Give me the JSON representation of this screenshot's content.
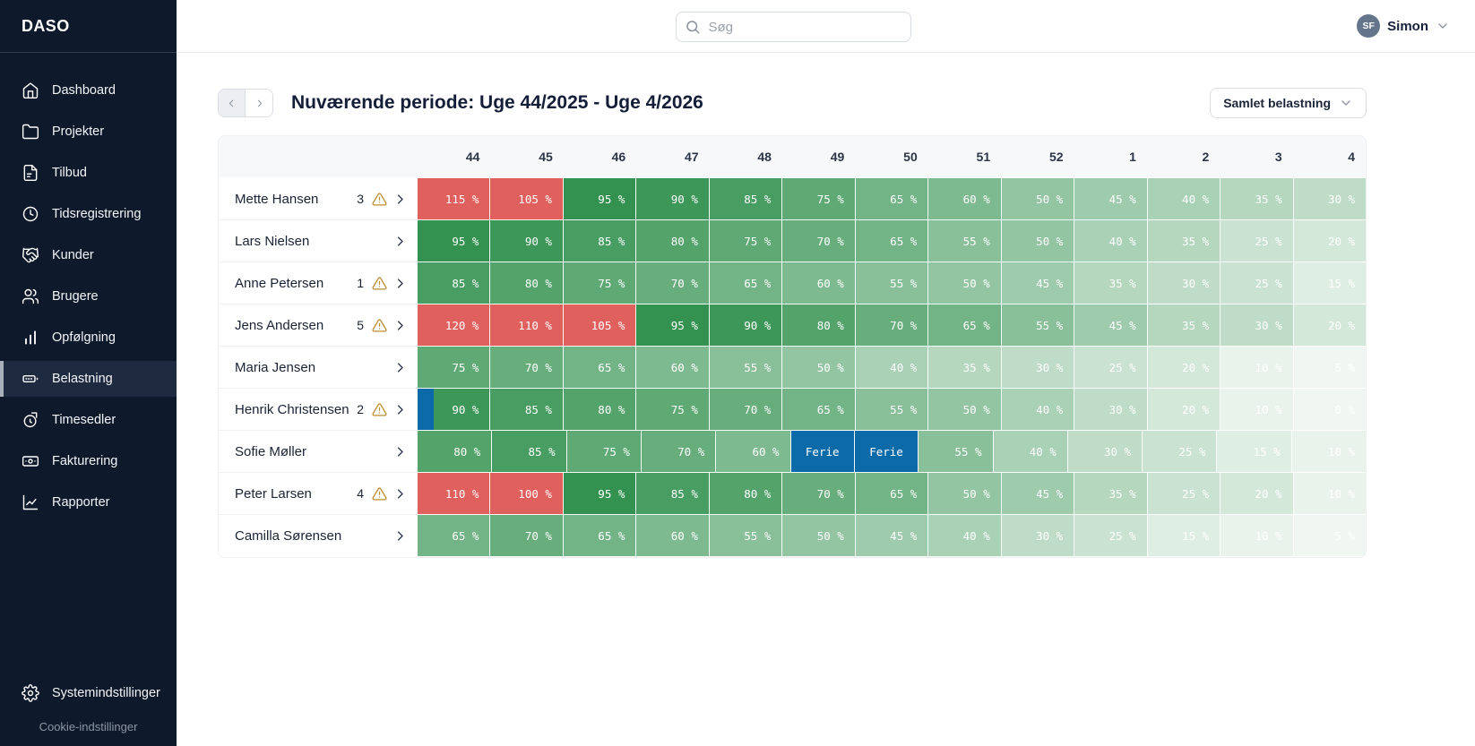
{
  "brand": {
    "name": "DASO"
  },
  "sidebar": {
    "items": [
      {
        "label": "Dashboard",
        "icon": "home-icon",
        "active": false
      },
      {
        "label": "Projekter",
        "icon": "folder-icon",
        "active": false
      },
      {
        "label": "Tilbud",
        "icon": "document-icon",
        "active": false
      },
      {
        "label": "Tidsregistrering",
        "icon": "clock-icon",
        "active": false
      },
      {
        "label": "Kunder",
        "icon": "handshake-icon",
        "active": false
      },
      {
        "label": "Brugere",
        "icon": "users-icon",
        "active": false
      },
      {
        "label": "Opfølgning",
        "icon": "bar-chart-icon",
        "active": false
      },
      {
        "label": "Belastning",
        "icon": "load-meter-icon",
        "active": true
      },
      {
        "label": "Timesedler",
        "icon": "stopwatch-icon",
        "active": false
      },
      {
        "label": "Fakturering",
        "icon": "banknote-icon",
        "active": false
      },
      {
        "label": "Rapporter",
        "icon": "line-chart-icon",
        "active": false
      }
    ],
    "settings_label": "Systemindstillinger",
    "cookie_label": "Cookie-indstillinger"
  },
  "topbar": {
    "search_placeholder": "Søg",
    "user_initials": "SF",
    "user_name": "Simon"
  },
  "content": {
    "period_title": "Nuværende periode: Uge 44/2025 - Uge 4/2026",
    "view_selector_label": "Samlet belastning"
  },
  "heatmap": {
    "week_labels": [
      "44",
      "45",
      "46",
      "47",
      "48",
      "49",
      "50",
      "51",
      "52",
      "1",
      "2",
      "3",
      "4"
    ],
    "vacation_label": "Ferie",
    "value_suffix": " %",
    "colors": {
      "overload": "#e0605d",
      "green_rgb": [
        40,
        140,
        70
      ],
      "vacation": "#0b6ba8",
      "cell_text": "#ffffff"
    },
    "rows": [
      {
        "name": "Mette Hansen",
        "warning_count": 3,
        "vacation_strip_week": null,
        "values": [
          115,
          105,
          95,
          90,
          85,
          75,
          65,
          60,
          50,
          45,
          40,
          35,
          30
        ]
      },
      {
        "name": "Lars Nielsen",
        "warning_count": null,
        "vacation_strip_week": null,
        "values": [
          95,
          90,
          85,
          80,
          75,
          70,
          65,
          55,
          50,
          40,
          35,
          25,
          20
        ]
      },
      {
        "name": "Anne Petersen",
        "warning_count": 1,
        "vacation_strip_week": null,
        "values": [
          85,
          80,
          75,
          70,
          65,
          60,
          55,
          50,
          45,
          35,
          30,
          25,
          15
        ]
      },
      {
        "name": "Jens Andersen",
        "warning_count": 5,
        "vacation_strip_week": null,
        "values": [
          120,
          110,
          105,
          95,
          90,
          80,
          70,
          65,
          55,
          45,
          35,
          30,
          20
        ]
      },
      {
        "name": "Maria Jensen",
        "warning_count": null,
        "vacation_strip_week": null,
        "values": [
          75,
          70,
          65,
          60,
          55,
          50,
          40,
          35,
          30,
          25,
          20,
          10,
          5
        ]
      },
      {
        "name": "Henrik Christensen",
        "warning_count": 2,
        "vacation_strip_week": "44",
        "values": [
          90,
          85,
          80,
          75,
          70,
          65,
          55,
          50,
          40,
          30,
          20,
          10,
          0
        ]
      },
      {
        "name": "Sofie Møller",
        "warning_count": null,
        "vacation_strip_week": null,
        "values": [
          80,
          85,
          75,
          70,
          60,
          "Ferie",
          "Ferie",
          55,
          40,
          30,
          25,
          15,
          10
        ]
      },
      {
        "name": "Peter Larsen",
        "warning_count": 4,
        "vacation_strip_week": null,
        "values": [
          110,
          100,
          95,
          85,
          80,
          70,
          65,
          50,
          45,
          35,
          25,
          20,
          10
        ]
      },
      {
        "name": "Camilla Sørensen",
        "warning_count": null,
        "vacation_strip_week": null,
        "values": [
          65,
          70,
          65,
          60,
          55,
          50,
          45,
          40,
          30,
          25,
          15,
          10,
          5
        ]
      }
    ]
  }
}
